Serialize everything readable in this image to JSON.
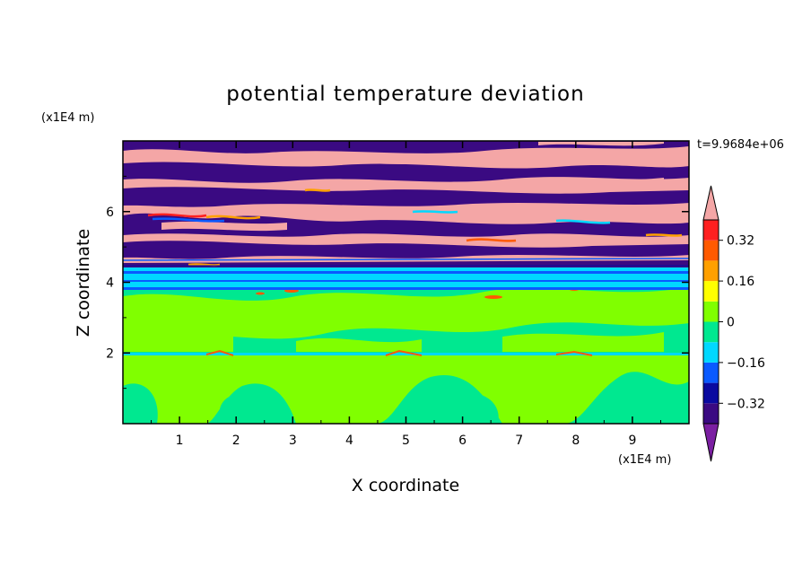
{
  "chart_data": {
    "type": "heatmap",
    "title": "potential temperature deviation",
    "xlabel": "X coordinate",
    "ylabel": "Z coordinate",
    "x_unit": "(x1E4 m)",
    "y_unit": "(x1E4 m)",
    "time_label": "t=9.9684e+06",
    "xlim": [
      0,
      10
    ],
    "ylim": [
      0,
      8
    ],
    "x_ticks": [
      "1",
      "2",
      "3",
      "4",
      "5",
      "6",
      "7",
      "8",
      "9"
    ],
    "y_ticks": [
      "2",
      "4",
      "6"
    ],
    "colorbar": {
      "levels": [
        -0.4,
        -0.32,
        -0.24,
        -0.16,
        -0.08,
        0,
        0.08,
        0.16,
        0.24,
        0.32,
        0.4
      ],
      "labels": [
        "0.32",
        "0.16",
        "0",
        "−0.16",
        "−0.32"
      ],
      "label_values": [
        0.32,
        0.16,
        0,
        -0.16,
        -0.32
      ],
      "colors": [
        "#3a0a82",
        "#0a0aa0",
        "#0a5aff",
        "#00d8ff",
        "#00e890",
        "#80ff00",
        "#ffff00",
        "#ffa000",
        "#ff5a00",
        "#ff2020"
      ],
      "under_color": "#7b1fa2",
      "over_color": "#f4a6a6",
      "extend": "both"
    },
    "regions": [
      {
        "z": [
          0.0,
          2.0
        ],
        "level": "mixed -0.08 to 0.08"
      },
      {
        "z": [
          2.0,
          2.05
        ],
        "level": "thin band near -0.08 to 0"
      },
      {
        "z": [
          2.05,
          3.9
        ],
        "level": "mixed -0.08 to 0.08"
      },
      {
        "z": [
          3.9,
          4.5
        ],
        "level": "banded -0.24 to -0.08"
      },
      {
        "z": [
          4.5,
          8.0
        ],
        "level": "alternating below -0.4 and above 0.4"
      }
    ]
  }
}
